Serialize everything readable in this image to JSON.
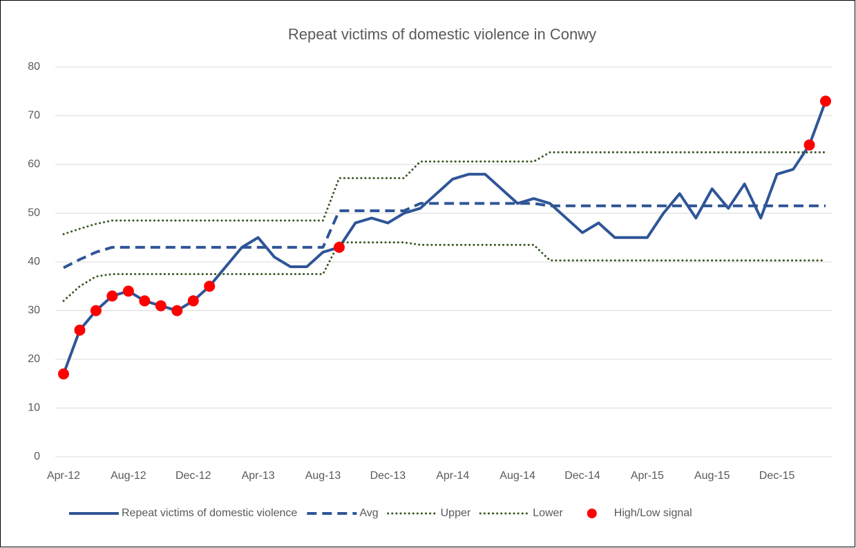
{
  "chart_data": {
    "type": "line",
    "title": "Repeat victims of domestic violence in Conwy",
    "categories": [
      "Apr-12",
      null,
      null,
      null,
      "Aug-12",
      null,
      null,
      null,
      "Dec-12",
      null,
      null,
      null,
      "Apr-13",
      null,
      null,
      null,
      "Aug-13",
      null,
      null,
      null,
      "Dec-13",
      null,
      null,
      null,
      "Apr-14",
      null,
      null,
      null,
      "Aug-14",
      null,
      null,
      null,
      "Dec-14",
      null,
      null,
      null,
      "Apr-15",
      null,
      null,
      null,
      "Aug-15",
      null,
      null,
      null,
      "Dec-15",
      null,
      null,
      null
    ],
    "ylim": [
      0,
      80
    ],
    "yticks": [
      0,
      10,
      20,
      30,
      40,
      50,
      60,
      70,
      80
    ],
    "grid": true,
    "legend": "bottom",
    "series": [
      {
        "name": "Repeat victims of domestic violence",
        "color": "#2f5597",
        "line_style": "solid",
        "values": [
          17,
          26,
          30,
          33,
          34,
          32,
          31,
          30,
          32,
          35,
          39,
          43,
          45,
          41,
          39,
          39,
          42,
          43,
          48,
          49,
          48,
          50,
          51,
          54,
          57,
          58,
          58,
          55,
          52,
          53,
          52,
          49,
          46,
          48,
          45,
          45,
          45,
          50,
          54,
          49,
          55,
          51,
          56,
          49,
          58,
          59,
          64,
          73
        ]
      },
      {
        "name": "Avg",
        "color": "#2f5597",
        "line_style": "dashed",
        "values": [
          38.8,
          40.5,
          42,
          43,
          43,
          43,
          43,
          43,
          43,
          43,
          43,
          43,
          43,
          43,
          43,
          43,
          43,
          50.5,
          50.5,
          50.5,
          50.5,
          50.5,
          52,
          52,
          52,
          52,
          52,
          52,
          52,
          52,
          51.5,
          51.5,
          51.5,
          51.5,
          51.5,
          51.5,
          51.5,
          51.5,
          51.5,
          51.5,
          51.5,
          51.5,
          51.5,
          51.5,
          51.5,
          51.5,
          51.5,
          51.5
        ]
      },
      {
        "name": "Upper",
        "color": "#375623",
        "line_style": "dotted",
        "values": [
          45.7,
          46.8,
          47.8,
          48.5,
          48.5,
          48.5,
          48.5,
          48.5,
          48.5,
          48.5,
          48.5,
          48.5,
          48.5,
          48.5,
          48.5,
          48.5,
          48.5,
          57.2,
          57.2,
          57.2,
          57.2,
          57.2,
          60.6,
          60.6,
          60.6,
          60.6,
          60.6,
          60.6,
          60.6,
          60.6,
          62.5,
          62.5,
          62.5,
          62.5,
          62.5,
          62.5,
          62.5,
          62.5,
          62.5,
          62.5,
          62.5,
          62.5,
          62.5,
          62.5,
          62.5,
          62.5,
          62.5,
          62.5
        ]
      },
      {
        "name": "Lower",
        "color": "#375623",
        "line_style": "dotted",
        "values": [
          32,
          35,
          37,
          37.5,
          37.5,
          37.5,
          37.5,
          37.5,
          37.5,
          37.5,
          37.5,
          37.5,
          37.5,
          37.5,
          37.5,
          37.5,
          37.5,
          44,
          44,
          44,
          44,
          44,
          43.5,
          43.5,
          43.5,
          43.5,
          43.5,
          43.5,
          43.5,
          43.5,
          40.3,
          40.3,
          40.3,
          40.3,
          40.3,
          40.3,
          40.3,
          40.3,
          40.3,
          40.3,
          40.3,
          40.3,
          40.3,
          40.3,
          40.3,
          40.3,
          40.3,
          40.3
        ]
      },
      {
        "name": "High/Low signal",
        "color": "#ff0000",
        "line_style": "markers",
        "values": [
          17,
          26,
          30,
          33,
          34,
          32,
          31,
          30,
          32,
          35,
          null,
          null,
          null,
          null,
          null,
          null,
          null,
          43,
          null,
          null,
          null,
          null,
          null,
          null,
          null,
          null,
          null,
          null,
          null,
          null,
          null,
          null,
          null,
          null,
          null,
          null,
          null,
          null,
          null,
          null,
          null,
          null,
          null,
          null,
          null,
          null,
          64,
          73
        ]
      }
    ]
  }
}
